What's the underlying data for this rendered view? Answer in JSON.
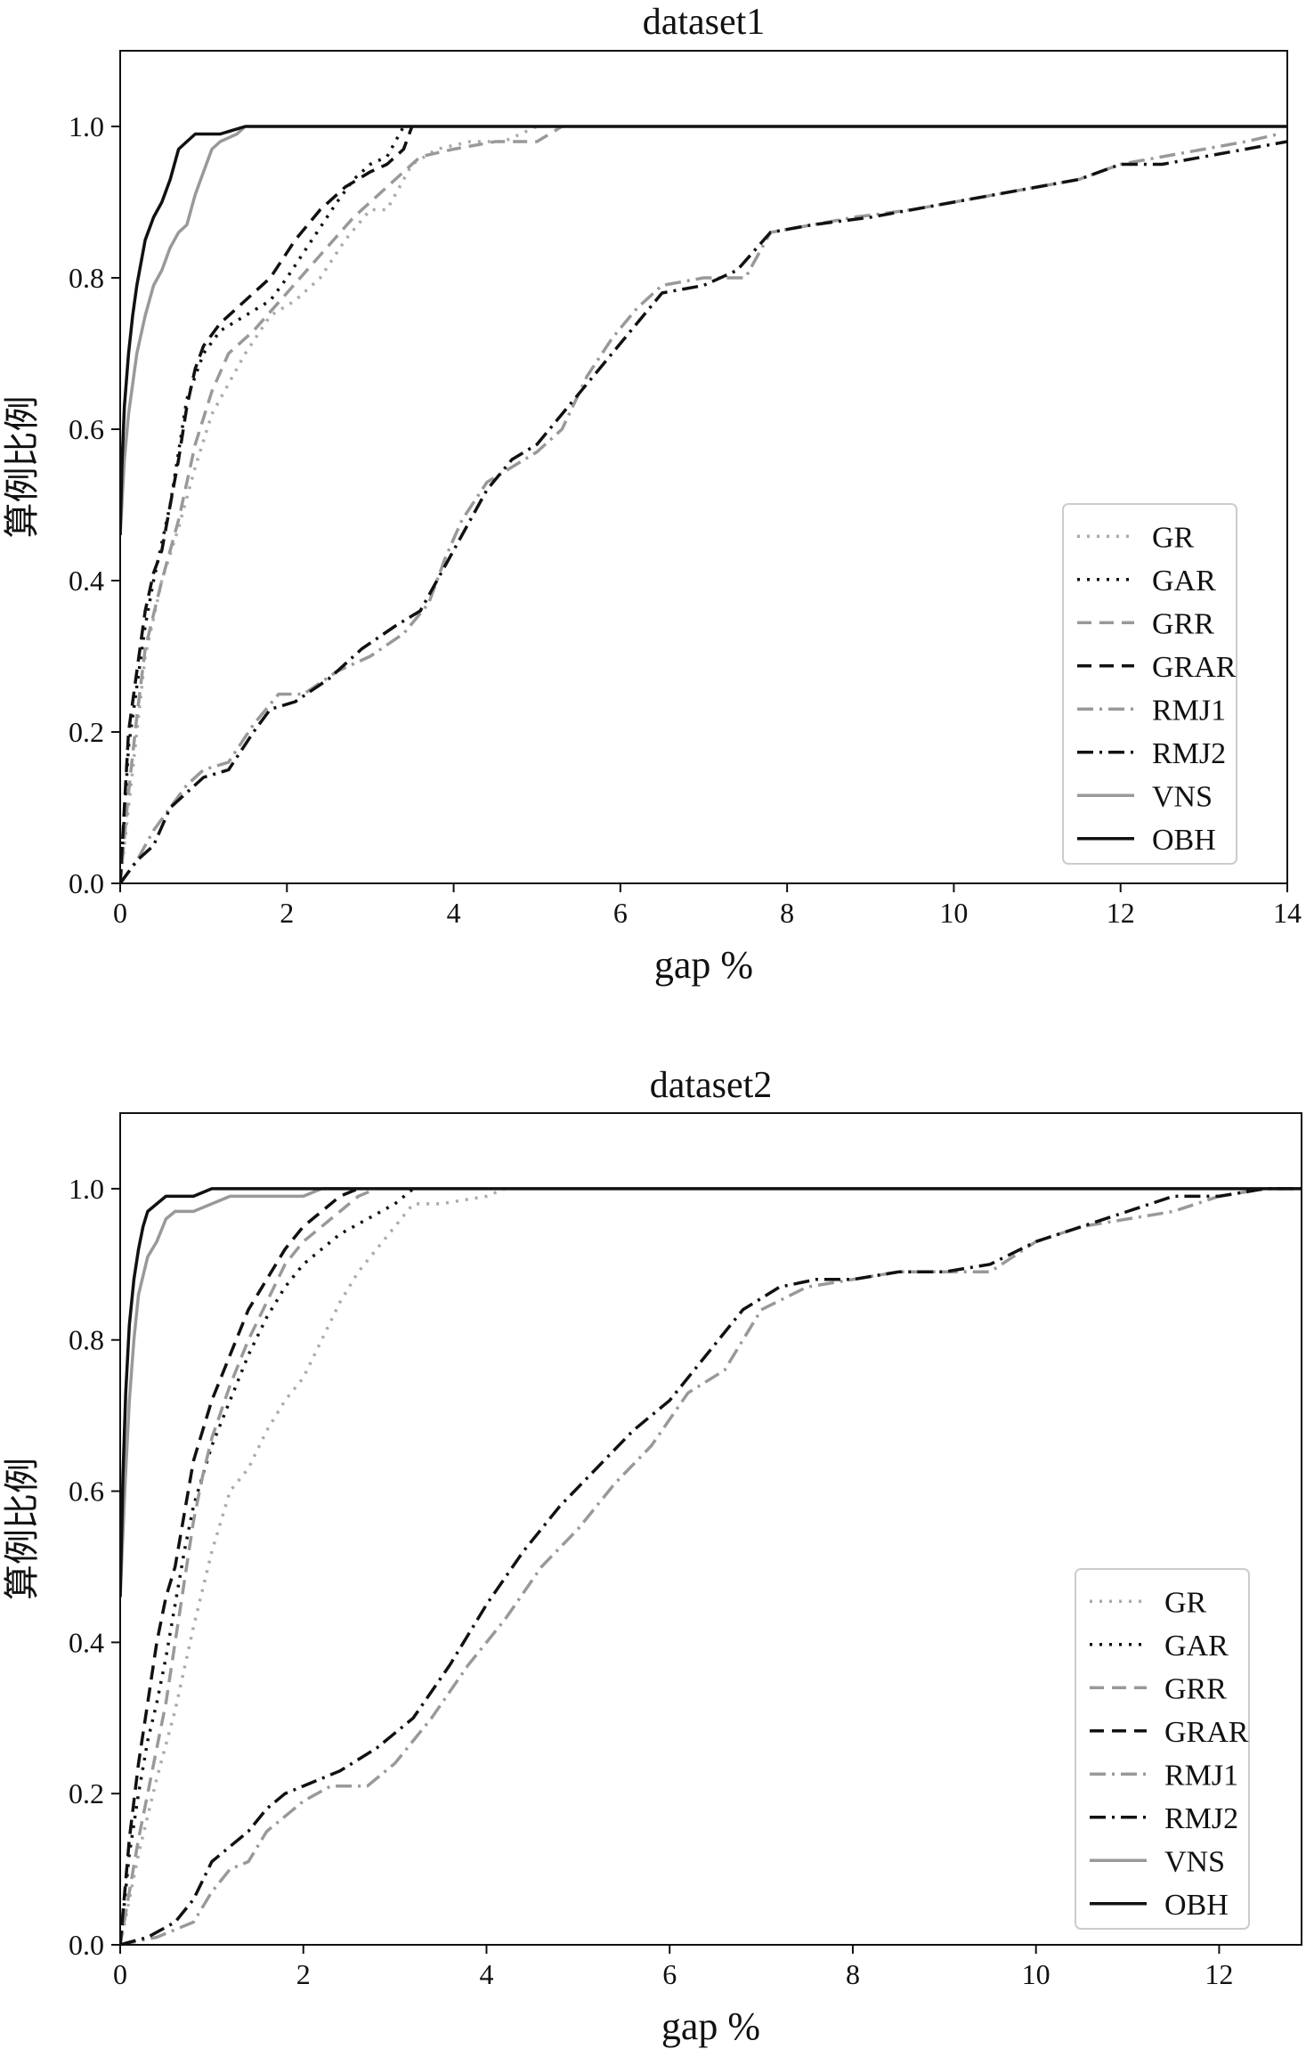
{
  "figure": {
    "charts": [
      {
        "title": "dataset1"
      },
      {
        "title": "dataset2"
      }
    ]
  },
  "chart_data": [
    {
      "type": "line",
      "title": "dataset1",
      "xlabel": "gap %",
      "ylabel": "算例比例",
      "xlim": [
        0,
        14
      ],
      "ylim": [
        0,
        1.1
      ],
      "xticks": [
        0,
        2,
        4,
        6,
        8,
        10,
        12,
        14
      ],
      "yticks": [
        0.0,
        0.2,
        0.4,
        0.6,
        0.8,
        1.0
      ],
      "xtick_labels": [
        "0",
        "2",
        "4",
        "6",
        "8",
        "10",
        "12",
        "14"
      ],
      "ytick_labels": [
        "0.0",
        "0.2",
        "0.4",
        "0.6",
        "0.8",
        "1.0"
      ],
      "grid": false,
      "legend_position": "lower-right",
      "series": [
        {
          "name": "GR",
          "color": "#aaaaaa",
          "dash": "dotted",
          "x": [
            0,
            0.1,
            0.2,
            0.3,
            0.5,
            0.7,
            0.9,
            1.1,
            1.3,
            1.5,
            1.8,
            2.1,
            2.4,
            2.7,
            3.0,
            3.2,
            3.5,
            3.8,
            4.2,
            4.6,
            5.0
          ],
          "y": [
            0.0,
            0.1,
            0.2,
            0.3,
            0.4,
            0.47,
            0.55,
            0.62,
            0.66,
            0.7,
            0.75,
            0.77,
            0.8,
            0.85,
            0.89,
            0.89,
            0.95,
            0.97,
            0.98,
            0.98,
            1.0
          ]
        },
        {
          "name": "GAR",
          "color": "#111111",
          "dash": "dotted",
          "x": [
            0,
            0.1,
            0.2,
            0.3,
            0.4,
            0.5,
            0.6,
            0.7,
            0.8,
            0.9,
            1.0,
            1.2,
            1.5,
            1.8,
            2.0,
            2.3,
            2.6,
            2.8,
            3.0,
            3.2,
            3.4
          ],
          "y": [
            0.0,
            0.18,
            0.26,
            0.34,
            0.4,
            0.45,
            0.5,
            0.57,
            0.64,
            0.67,
            0.7,
            0.73,
            0.75,
            0.77,
            0.8,
            0.85,
            0.9,
            0.93,
            0.95,
            0.96,
            1.0
          ]
        },
        {
          "name": "GRR",
          "color": "#999999",
          "dash": "dashed",
          "x": [
            0,
            0.1,
            0.2,
            0.3,
            0.5,
            0.7,
            0.9,
            1.1,
            1.3,
            1.6,
            2.0,
            2.4,
            2.8,
            3.0,
            3.3,
            3.6,
            4.0,
            4.5,
            5.0,
            5.3
          ],
          "y": [
            0.0,
            0.12,
            0.22,
            0.31,
            0.4,
            0.48,
            0.58,
            0.65,
            0.7,
            0.73,
            0.78,
            0.83,
            0.88,
            0.9,
            0.93,
            0.96,
            0.97,
            0.98,
            0.98,
            1.0
          ]
        },
        {
          "name": "GRAR",
          "color": "#111111",
          "dash": "dashed",
          "x": [
            0,
            0.1,
            0.2,
            0.3,
            0.4,
            0.5,
            0.6,
            0.7,
            0.8,
            0.9,
            1.0,
            1.2,
            1.5,
            1.8,
            2.1,
            2.4,
            2.7,
            3.0,
            3.2,
            3.4,
            3.5
          ],
          "y": [
            0.0,
            0.2,
            0.28,
            0.36,
            0.41,
            0.44,
            0.5,
            0.56,
            0.63,
            0.68,
            0.71,
            0.74,
            0.77,
            0.8,
            0.85,
            0.89,
            0.92,
            0.94,
            0.95,
            0.97,
            1.0
          ]
        },
        {
          "name": "RMJ1",
          "color": "#999999",
          "dash": "dashdot",
          "x": [
            0,
            0.2,
            0.4,
            0.6,
            0.8,
            1.0,
            1.3,
            1.6,
            1.9,
            2.2,
            2.6,
            3.0,
            3.4,
            3.7,
            3.9,
            4.1,
            4.4,
            4.7,
            5.0,
            5.3,
            5.6,
            5.9,
            6.2,
            6.5,
            7.0,
            7.5,
            7.8,
            8.3,
            8.8,
            9.5,
            10.0,
            10.5,
            11.0,
            11.5,
            12.0,
            12.5,
            13.0,
            13.5,
            13.9
          ],
          "y": [
            0.0,
            0.03,
            0.07,
            0.1,
            0.13,
            0.15,
            0.16,
            0.21,
            0.25,
            0.25,
            0.28,
            0.3,
            0.33,
            0.37,
            0.43,
            0.48,
            0.53,
            0.55,
            0.57,
            0.6,
            0.67,
            0.72,
            0.76,
            0.79,
            0.8,
            0.8,
            0.86,
            0.87,
            0.88,
            0.89,
            0.9,
            0.91,
            0.92,
            0.93,
            0.95,
            0.96,
            0.97,
            0.98,
            0.99
          ]
        },
        {
          "name": "RMJ2",
          "color": "#111111",
          "dash": "dashdot",
          "x": [
            0,
            0.2,
            0.4,
            0.6,
            0.8,
            1.0,
            1.3,
            1.6,
            1.8,
            2.1,
            2.5,
            2.9,
            3.3,
            3.6,
            3.9,
            4.1,
            4.4,
            4.7,
            5.0,
            5.3,
            5.6,
            5.9,
            6.2,
            6.5,
            7.0,
            7.4,
            7.8,
            8.3,
            9.0,
            9.5,
            10.0,
            10.5,
            11.0,
            11.5,
            12.0,
            12.5,
            13.0,
            13.5,
            14.0
          ],
          "y": [
            0.0,
            0.03,
            0.05,
            0.1,
            0.12,
            0.14,
            0.15,
            0.2,
            0.23,
            0.24,
            0.27,
            0.31,
            0.34,
            0.36,
            0.42,
            0.46,
            0.52,
            0.56,
            0.58,
            0.62,
            0.66,
            0.7,
            0.74,
            0.78,
            0.79,
            0.81,
            0.86,
            0.87,
            0.88,
            0.89,
            0.9,
            0.91,
            0.92,
            0.93,
            0.95,
            0.95,
            0.96,
            0.97,
            0.98
          ]
        },
        {
          "name": "VNS",
          "color": "#999999",
          "dash": "solid",
          "x": [
            0,
            0.05,
            0.1,
            0.2,
            0.3,
            0.4,
            0.5,
            0.6,
            0.7,
            0.8,
            0.9,
            1.0,
            1.1,
            1.2,
            1.4,
            1.5
          ],
          "y": [
            0.46,
            0.56,
            0.62,
            0.7,
            0.75,
            0.79,
            0.81,
            0.84,
            0.86,
            0.87,
            0.91,
            0.94,
            0.97,
            0.98,
            0.99,
            1.0
          ]
        },
        {
          "name": "OBH",
          "color": "#111111",
          "dash": "solid",
          "x": [
            0,
            0.02,
            0.05,
            0.1,
            0.15,
            0.2,
            0.25,
            0.3,
            0.4,
            0.5,
            0.6,
            0.7,
            0.8,
            0.9,
            1.0,
            1.2,
            1.5,
            14.0
          ],
          "y": [
            0.46,
            0.55,
            0.63,
            0.7,
            0.75,
            0.79,
            0.82,
            0.85,
            0.88,
            0.9,
            0.93,
            0.97,
            0.98,
            0.99,
            0.99,
            0.99,
            1.0,
            1.0
          ]
        }
      ]
    },
    {
      "type": "line",
      "title": "dataset2",
      "xlabel": "gap %",
      "ylabel": "算例比例",
      "xlim": [
        0,
        12.9
      ],
      "ylim": [
        0,
        1.1
      ],
      "xticks": [
        0,
        2,
        4,
        6,
        8,
        10,
        12
      ],
      "yticks": [
        0.0,
        0.2,
        0.4,
        0.6,
        0.8,
        1.0
      ],
      "xtick_labels": [
        "0",
        "2",
        "4",
        "6",
        "8",
        "10",
        "12"
      ],
      "ytick_labels": [
        "0.0",
        "0.2",
        "0.4",
        "0.6",
        "0.8",
        "1.0"
      ],
      "grid": false,
      "legend_position": "lower-right",
      "series": [
        {
          "name": "GR",
          "color": "#aaaaaa",
          "dash": "dotted",
          "x": [
            0,
            0.2,
            0.4,
            0.6,
            0.8,
            1.0,
            1.2,
            1.4,
            1.6,
            1.8,
            2.0,
            2.2,
            2.4,
            2.6,
            2.8,
            3.0,
            3.2,
            3.5,
            4.0,
            4.2
          ],
          "y": [
            0.0,
            0.12,
            0.22,
            0.31,
            0.42,
            0.52,
            0.6,
            0.63,
            0.68,
            0.72,
            0.75,
            0.8,
            0.85,
            0.89,
            0.92,
            0.95,
            0.98,
            0.98,
            0.99,
            1.0
          ]
        },
        {
          "name": "GAR",
          "color": "#111111",
          "dash": "dotted",
          "x": [
            0,
            0.1,
            0.2,
            0.3,
            0.4,
            0.5,
            0.6,
            0.7,
            0.8,
            0.9,
            1.0,
            1.2,
            1.4,
            1.6,
            1.8,
            2.0,
            2.2,
            2.4,
            2.7,
            3.0,
            3.2
          ],
          "y": [
            0.0,
            0.12,
            0.2,
            0.27,
            0.32,
            0.38,
            0.45,
            0.52,
            0.58,
            0.62,
            0.66,
            0.72,
            0.78,
            0.83,
            0.87,
            0.9,
            0.92,
            0.94,
            0.96,
            0.98,
            1.0
          ]
        },
        {
          "name": "GRR",
          "color": "#999999",
          "dash": "dashed",
          "x": [
            0,
            0.1,
            0.2,
            0.3,
            0.4,
            0.5,
            0.6,
            0.7,
            0.8,
            0.9,
            1.0,
            1.2,
            1.4,
            1.6,
            1.8,
            2.0,
            2.2,
            2.4,
            2.6,
            2.8
          ],
          "y": [
            0.0,
            0.07,
            0.14,
            0.2,
            0.26,
            0.32,
            0.4,
            0.48,
            0.56,
            0.62,
            0.67,
            0.74,
            0.8,
            0.85,
            0.9,
            0.93,
            0.95,
            0.97,
            0.99,
            1.0
          ]
        },
        {
          "name": "GRAR",
          "color": "#111111",
          "dash": "dashed",
          "x": [
            0,
            0.1,
            0.2,
            0.3,
            0.4,
            0.5,
            0.6,
            0.7,
            0.8,
            0.9,
            1.0,
            1.2,
            1.4,
            1.6,
            1.8,
            2.0,
            2.2,
            2.4,
            2.6
          ],
          "y": [
            0.0,
            0.14,
            0.24,
            0.32,
            0.4,
            0.46,
            0.5,
            0.57,
            0.64,
            0.68,
            0.72,
            0.78,
            0.84,
            0.88,
            0.92,
            0.95,
            0.97,
            0.99,
            1.0
          ]
        },
        {
          "name": "RMJ1",
          "color": "#999999",
          "dash": "dashdot",
          "x": [
            0,
            0.4,
            0.8,
            1.0,
            1.2,
            1.4,
            1.6,
            1.8,
            2.0,
            2.3,
            2.7,
            3.0,
            3.4,
            3.8,
            4.2,
            4.6,
            5.0,
            5.4,
            5.8,
            6.2,
            6.6,
            7.0,
            7.5,
            8.0,
            8.5,
            9.0,
            9.5,
            10.0,
            10.5,
            11.0,
            11.5,
            12.0,
            12.5,
            12.9
          ],
          "y": [
            0.0,
            0.01,
            0.03,
            0.07,
            0.1,
            0.11,
            0.15,
            0.17,
            0.19,
            0.21,
            0.21,
            0.24,
            0.3,
            0.37,
            0.43,
            0.5,
            0.55,
            0.61,
            0.66,
            0.73,
            0.76,
            0.84,
            0.87,
            0.88,
            0.89,
            0.89,
            0.89,
            0.93,
            0.95,
            0.96,
            0.97,
            0.99,
            1.0,
            1.0
          ]
        },
        {
          "name": "RMJ2",
          "color": "#111111",
          "dash": "dashdot",
          "x": [
            0,
            0.3,
            0.6,
            0.8,
            1.0,
            1.2,
            1.4,
            1.6,
            1.8,
            2.0,
            2.4,
            2.8,
            3.2,
            3.6,
            4.0,
            4.4,
            4.8,
            5.2,
            5.6,
            6.0,
            6.4,
            6.8,
            7.2,
            7.6,
            8.0,
            8.5,
            9.0,
            9.5,
            10.0,
            10.5,
            11.0,
            11.5,
            12.0,
            12.5,
            12.9
          ],
          "y": [
            0.0,
            0.01,
            0.03,
            0.06,
            0.11,
            0.13,
            0.15,
            0.18,
            0.2,
            0.21,
            0.23,
            0.26,
            0.3,
            0.37,
            0.45,
            0.52,
            0.58,
            0.63,
            0.68,
            0.72,
            0.78,
            0.84,
            0.87,
            0.88,
            0.88,
            0.89,
            0.89,
            0.9,
            0.93,
            0.95,
            0.97,
            0.99,
            0.99,
            1.0,
            1.0
          ]
        },
        {
          "name": "VNS",
          "color": "#999999",
          "dash": "solid",
          "x": [
            0,
            0.05,
            0.1,
            0.15,
            0.2,
            0.3,
            0.4,
            0.5,
            0.6,
            0.8,
            1.0,
            1.2,
            1.6,
            2.0,
            2.2,
            2.5
          ],
          "y": [
            0.46,
            0.6,
            0.72,
            0.8,
            0.86,
            0.91,
            0.93,
            0.96,
            0.97,
            0.97,
            0.98,
            0.99,
            0.99,
            0.99,
            1.0,
            1.0
          ]
        },
        {
          "name": "OBH",
          "color": "#111111",
          "dash": "solid",
          "x": [
            0,
            0.03,
            0.06,
            0.1,
            0.15,
            0.2,
            0.25,
            0.3,
            0.4,
            0.5,
            0.8,
            1.0,
            1.2,
            12.9
          ],
          "y": [
            0.46,
            0.62,
            0.73,
            0.82,
            0.88,
            0.92,
            0.95,
            0.97,
            0.98,
            0.99,
            0.99,
            1.0,
            1.0,
            1.0
          ]
        }
      ]
    }
  ]
}
